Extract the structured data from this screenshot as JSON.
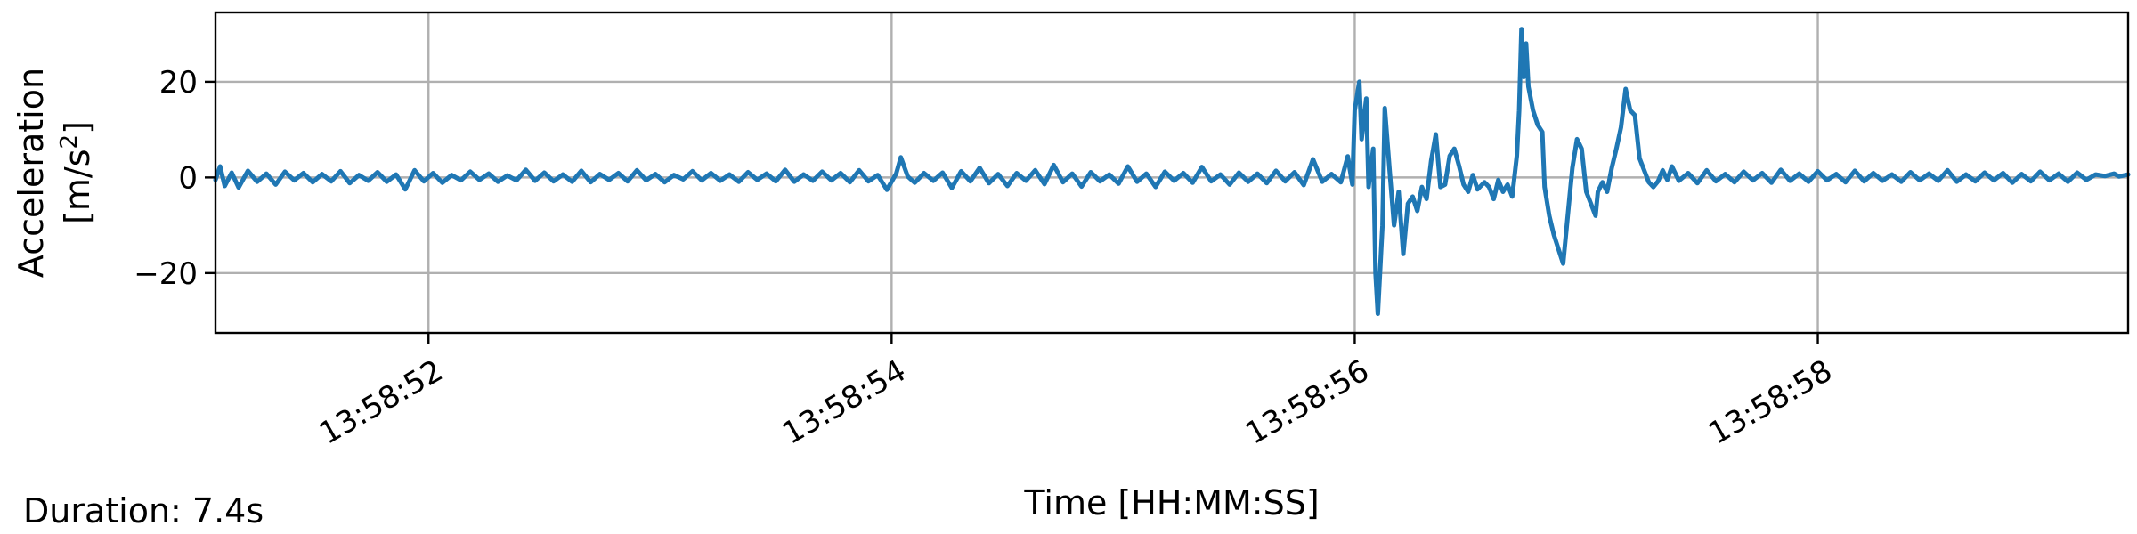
{
  "chart_data": {
    "type": "line",
    "title": "",
    "xlabel": "Time [HH:MM:SS]",
    "ylabel_line1": "Acceleration",
    "ylabel_line2": "[m/s²]",
    "ylabel_unit_base": "[m/s",
    "ylabel_unit_sup": "2",
    "ylabel_unit_end": "]",
    "x_unit": "seconds after 13:58:51",
    "xlim": [
      0.08,
      8.34
    ],
    "ylim": [
      -32.5,
      34.5
    ],
    "x_ticks": [
      {
        "value": 1,
        "label": "13:58:52"
      },
      {
        "value": 3,
        "label": "13:58:54"
      },
      {
        "value": 5,
        "label": "13:58:56"
      },
      {
        "value": 7,
        "label": "13:58:58"
      }
    ],
    "y_ticks": [
      {
        "value": 20,
        "label": "20"
      },
      {
        "value": 0,
        "label": "0"
      },
      {
        "value": -20,
        "label": "−20"
      }
    ],
    "grid": true,
    "series": [
      {
        "color": "#1f77b4",
        "points": [
          [
            0.08,
            -0.5
          ],
          [
            0.1,
            2.3
          ],
          [
            0.12,
            -1.8
          ],
          [
            0.15,
            1.0
          ],
          [
            0.18,
            -2.1
          ],
          [
            0.22,
            1.4
          ],
          [
            0.26,
            -0.9
          ],
          [
            0.3,
            0.8
          ],
          [
            0.34,
            -1.5
          ],
          [
            0.38,
            1.2
          ],
          [
            0.42,
            -0.6
          ],
          [
            0.46,
            0.9
          ],
          [
            0.5,
            -1.0
          ],
          [
            0.54,
            0.7
          ],
          [
            0.58,
            -0.8
          ],
          [
            0.62,
            1.3
          ],
          [
            0.66,
            -1.2
          ],
          [
            0.7,
            0.5
          ],
          [
            0.74,
            -0.7
          ],
          [
            0.78,
            1.1
          ],
          [
            0.82,
            -0.9
          ],
          [
            0.86,
            0.6
          ],
          [
            0.9,
            -2.5
          ],
          [
            0.94,
            1.5
          ],
          [
            0.98,
            -0.8
          ],
          [
            1.02,
            0.9
          ],
          [
            1.06,
            -1.1
          ],
          [
            1.1,
            0.5
          ],
          [
            1.14,
            -0.6
          ],
          [
            1.18,
            1.2
          ],
          [
            1.22,
            -0.5
          ],
          [
            1.26,
            0.8
          ],
          [
            1.3,
            -0.9
          ],
          [
            1.34,
            0.4
          ],
          [
            1.38,
            -0.6
          ],
          [
            1.42,
            1.6
          ],
          [
            1.46,
            -0.7
          ],
          [
            1.5,
            1.0
          ],
          [
            1.54,
            -0.8
          ],
          [
            1.58,
            0.6
          ],
          [
            1.62,
            -0.9
          ],
          [
            1.66,
            1.4
          ],
          [
            1.7,
            -1.0
          ],
          [
            1.74,
            0.7
          ],
          [
            1.78,
            -0.5
          ],
          [
            1.82,
            0.9
          ],
          [
            1.86,
            -0.8
          ],
          [
            1.9,
            1.5
          ],
          [
            1.94,
            -0.6
          ],
          [
            1.98,
            0.7
          ],
          [
            2.02,
            -1.0
          ],
          [
            2.06,
            0.5
          ],
          [
            2.1,
            -0.4
          ],
          [
            2.14,
            1.3
          ],
          [
            2.18,
            -0.6
          ],
          [
            2.22,
            0.9
          ],
          [
            2.26,
            -0.7
          ],
          [
            2.3,
            0.6
          ],
          [
            2.34,
            -0.9
          ],
          [
            2.38,
            1.1
          ],
          [
            2.42,
            -0.5
          ],
          [
            2.46,
            0.8
          ],
          [
            2.5,
            -0.8
          ],
          [
            2.54,
            1.6
          ],
          [
            2.58,
            -0.9
          ],
          [
            2.62,
            0.6
          ],
          [
            2.66,
            -0.7
          ],
          [
            2.7,
            1.2
          ],
          [
            2.74,
            -0.6
          ],
          [
            2.78,
            0.9
          ],
          [
            2.82,
            -1.0
          ],
          [
            2.86,
            1.5
          ],
          [
            2.9,
            -0.8
          ],
          [
            2.94,
            0.5
          ],
          [
            2.98,
            -2.6
          ],
          [
            3.02,
            0.8
          ],
          [
            3.04,
            4.2
          ],
          [
            3.07,
            0.2
          ],
          [
            3.1,
            -1.1
          ],
          [
            3.14,
            0.9
          ],
          [
            3.18,
            -0.7
          ],
          [
            3.22,
            1.0
          ],
          [
            3.26,
            -2.2
          ],
          [
            3.3,
            1.3
          ],
          [
            3.34,
            -0.8
          ],
          [
            3.38,
            2.0
          ],
          [
            3.42,
            -1.2
          ],
          [
            3.46,
            0.7
          ],
          [
            3.5,
            -1.8
          ],
          [
            3.54,
            0.9
          ],
          [
            3.58,
            -0.7
          ],
          [
            3.62,
            1.5
          ],
          [
            3.66,
            -1.4
          ],
          [
            3.7,
            2.6
          ],
          [
            3.74,
            -1.0
          ],
          [
            3.78,
            0.8
          ],
          [
            3.82,
            -1.9
          ],
          [
            3.86,
            1.1
          ],
          [
            3.9,
            -0.8
          ],
          [
            3.94,
            0.6
          ],
          [
            3.98,
            -1.3
          ],
          [
            4.02,
            2.3
          ],
          [
            4.06,
            -0.9
          ],
          [
            4.1,
            0.8
          ],
          [
            4.14,
            -2.0
          ],
          [
            4.18,
            1.2
          ],
          [
            4.22,
            -0.7
          ],
          [
            4.26,
            0.9
          ],
          [
            4.3,
            -1.1
          ],
          [
            4.34,
            2.2
          ],
          [
            4.38,
            -0.8
          ],
          [
            4.42,
            0.6
          ],
          [
            4.46,
            -1.5
          ],
          [
            4.5,
            1.0
          ],
          [
            4.54,
            -0.9
          ],
          [
            4.58,
            0.8
          ],
          [
            4.62,
            -1.2
          ],
          [
            4.66,
            1.4
          ],
          [
            4.7,
            -0.8
          ],
          [
            4.74,
            1.1
          ],
          [
            4.78,
            -1.6
          ],
          [
            4.82,
            3.8
          ],
          [
            4.86,
            -0.9
          ],
          [
            4.9,
            0.7
          ],
          [
            4.94,
            -1.0
          ],
          [
            4.97,
            4.4
          ],
          [
            4.99,
            -1.5
          ],
          [
            5.0,
            14.0
          ],
          [
            5.02,
            20.0
          ],
          [
            5.03,
            8.0
          ],
          [
            5.05,
            16.5
          ],
          [
            5.06,
            -2.0
          ],
          [
            5.08,
            6.0
          ],
          [
            5.09,
            -20.0
          ],
          [
            5.1,
            -28.5
          ],
          [
            5.12,
            -10.0
          ],
          [
            5.13,
            14.5
          ],
          [
            5.15,
            2.0
          ],
          [
            5.17,
            -10.0
          ],
          [
            5.19,
            -3.0
          ],
          [
            5.21,
            -16.0
          ],
          [
            5.23,
            -5.5
          ],
          [
            5.25,
            -4.0
          ],
          [
            5.27,
            -7.0
          ],
          [
            5.29,
            -2.0
          ],
          [
            5.31,
            -4.5
          ],
          [
            5.33,
            3.5
          ],
          [
            5.35,
            9.0
          ],
          [
            5.37,
            -2.0
          ],
          [
            5.39,
            -1.5
          ],
          [
            5.41,
            4.5
          ],
          [
            5.43,
            6.0
          ],
          [
            5.45,
            2.5
          ],
          [
            5.47,
            -1.5
          ],
          [
            5.49,
            -3.0
          ],
          [
            5.51,
            0.5
          ],
          [
            5.53,
            -2.5
          ],
          [
            5.56,
            -1.0
          ],
          [
            5.58,
            -2.0
          ],
          [
            5.6,
            -4.5
          ],
          [
            5.62,
            -0.5
          ],
          [
            5.64,
            -3.0
          ],
          [
            5.66,
            -1.5
          ],
          [
            5.68,
            -4.0
          ],
          [
            5.7,
            4.5
          ],
          [
            5.71,
            14.0
          ],
          [
            5.72,
            31.0
          ],
          [
            5.73,
            21.0
          ],
          [
            5.74,
            28.0
          ],
          [
            5.75,
            19.0
          ],
          [
            5.77,
            14.0
          ],
          [
            5.79,
            11.0
          ],
          [
            5.81,
            9.5
          ],
          [
            5.82,
            -2.0
          ],
          [
            5.84,
            -8.0
          ],
          [
            5.86,
            -12.0
          ],
          [
            5.88,
            -15.0
          ],
          [
            5.9,
            -18.0
          ],
          [
            5.92,
            -8.0
          ],
          [
            5.94,
            2.0
          ],
          [
            5.96,
            8.0
          ],
          [
            5.98,
            6.0
          ],
          [
            6.0,
            -3.0
          ],
          [
            6.02,
            -5.5
          ],
          [
            6.04,
            -8.0
          ],
          [
            6.05,
            -3.0
          ],
          [
            6.07,
            -1.0
          ],
          [
            6.09,
            -3.0
          ],
          [
            6.11,
            2.0
          ],
          [
            6.13,
            6.0
          ],
          [
            6.15,
            10.5
          ],
          [
            6.17,
            18.5
          ],
          [
            6.19,
            14.0
          ],
          [
            6.21,
            13.0
          ],
          [
            6.23,
            4.0
          ],
          [
            6.25,
            1.5
          ],
          [
            6.27,
            -1.0
          ],
          [
            6.29,
            -2.0
          ],
          [
            6.31,
            -0.8
          ],
          [
            6.33,
            1.5
          ],
          [
            6.35,
            -0.5
          ],
          [
            6.37,
            2.3
          ],
          [
            6.4,
            -0.7
          ],
          [
            6.44,
            0.9
          ],
          [
            6.48,
            -1.2
          ],
          [
            6.52,
            1.5
          ],
          [
            6.56,
            -0.8
          ],
          [
            6.6,
            0.7
          ],
          [
            6.64,
            -1.0
          ],
          [
            6.68,
            1.2
          ],
          [
            6.72,
            -0.6
          ],
          [
            6.76,
            0.9
          ],
          [
            6.8,
            -1.1
          ],
          [
            6.84,
            1.6
          ],
          [
            6.88,
            -0.7
          ],
          [
            6.92,
            0.8
          ],
          [
            6.96,
            -0.9
          ],
          [
            7.0,
            1.3
          ],
          [
            7.04,
            -0.6
          ],
          [
            7.08,
            0.7
          ],
          [
            7.12,
            -1.0
          ],
          [
            7.16,
            1.4
          ],
          [
            7.2,
            -0.8
          ],
          [
            7.24,
            0.9
          ],
          [
            7.28,
            -0.7
          ],
          [
            7.32,
            0.6
          ],
          [
            7.36,
            -0.9
          ],
          [
            7.4,
            1.1
          ],
          [
            7.44,
            -0.6
          ],
          [
            7.48,
            0.8
          ],
          [
            7.52,
            -0.7
          ],
          [
            7.56,
            1.5
          ],
          [
            7.6,
            -0.9
          ],
          [
            7.64,
            0.6
          ],
          [
            7.68,
            -0.8
          ],
          [
            7.72,
            1.0
          ],
          [
            7.76,
            -0.6
          ],
          [
            7.8,
            0.9
          ],
          [
            7.84,
            -1.1
          ],
          [
            7.88,
            0.7
          ],
          [
            7.92,
            -0.8
          ],
          [
            7.96,
            1.2
          ],
          [
            8.0,
            -0.6
          ],
          [
            8.04,
            0.8
          ],
          [
            8.08,
            -0.9
          ],
          [
            8.12,
            1.0
          ],
          [
            8.16,
            -0.5
          ],
          [
            8.2,
            0.6
          ],
          [
            8.24,
            0.3
          ],
          [
            8.28,
            0.8
          ],
          [
            8.3,
            0.2
          ],
          [
            8.34,
            0.6
          ]
        ]
      }
    ]
  },
  "footer": {
    "duration_text": "Duration: 7.4s"
  }
}
